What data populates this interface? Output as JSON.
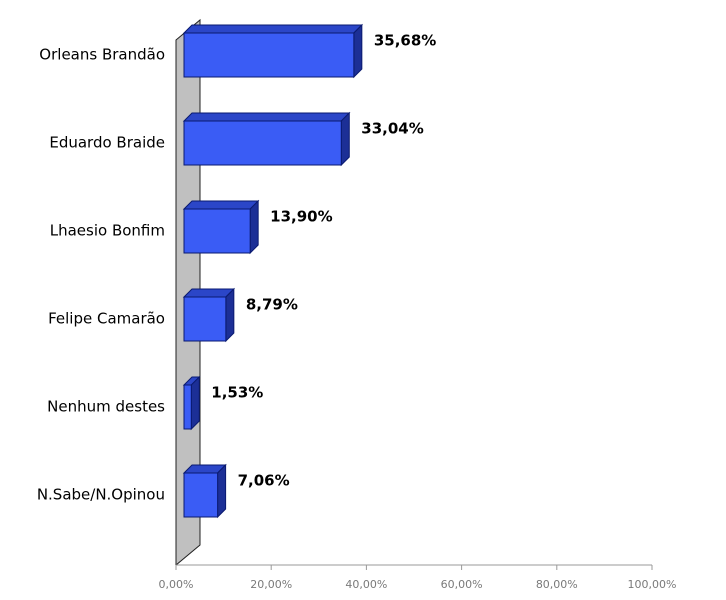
{
  "chart_data": {
    "type": "bar",
    "orientation": "horizontal",
    "categories": [
      "Orleans Brandão",
      "Eduardo Braide",
      "Lhaesio Bonfim",
      "Felipe Camarão",
      "Nenhum destes",
      "N.Sabe/N.Opinou"
    ],
    "values": [
      35.68,
      33.04,
      13.9,
      8.79,
      1.53,
      7.06
    ],
    "value_labels": [
      "35,68%",
      "33,04%",
      "13,90%",
      "8,79%",
      "1,53%",
      "7,06%"
    ],
    "color": "#3a5cf5",
    "xlim": [
      0,
      100
    ],
    "xticks": [
      {
        "value": 0,
        "label": "0,00%"
      },
      {
        "value": 20,
        "label": "20,00%"
      },
      {
        "value": 40,
        "label": "40,00%"
      },
      {
        "value": 60,
        "label": "60,00%"
      },
      {
        "value": 80,
        "label": "80,00%"
      },
      {
        "value": 100,
        "label": "100,00%"
      }
    ]
  }
}
